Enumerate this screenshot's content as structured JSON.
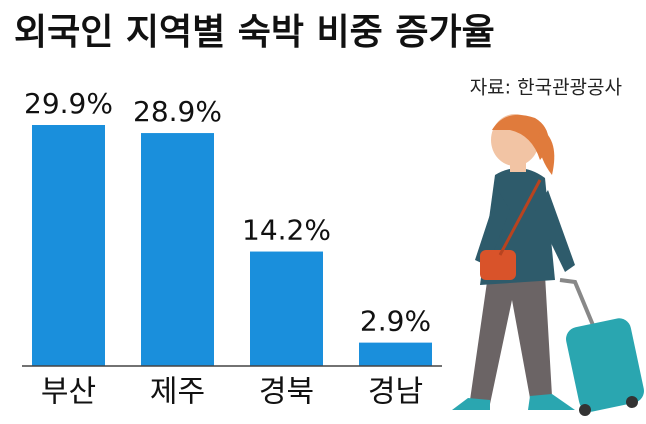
{
  "chart_data": {
    "type": "bar",
    "title": "외국인 지역별 숙박 비중 증가율",
    "source": "자료: 한국관광공사",
    "categories": [
      "부산",
      "제주",
      "경북",
      "경남"
    ],
    "values": [
      29.9,
      28.9,
      14.2,
      2.9
    ],
    "value_labels": [
      "29.9%",
      "28.9%",
      "14.2%",
      "2.9%"
    ],
    "color": "#1a8fdc"
  }
}
